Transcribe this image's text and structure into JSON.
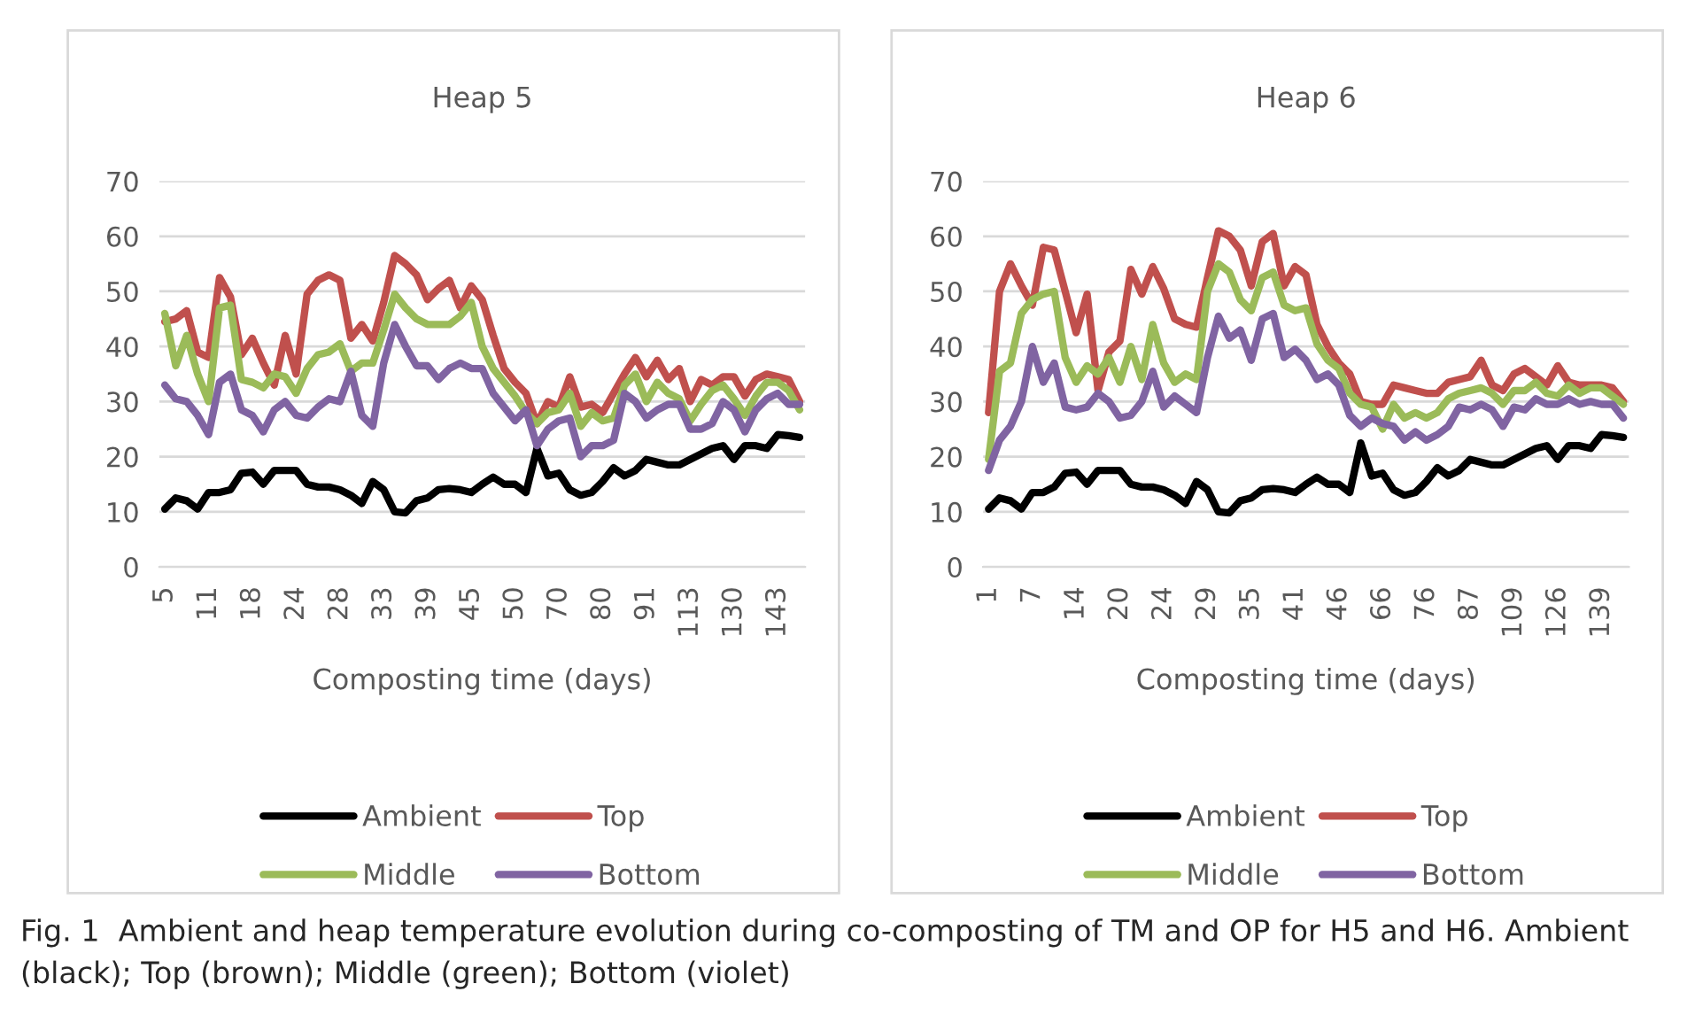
{
  "chart_data": [
    {
      "type": "line",
      "title": "Heap 5",
      "xlabel": "Composting time (days)",
      "categories": [
        "5",
        null,
        null,
        null,
        "11",
        null,
        null,
        null,
        "18",
        null,
        null,
        null,
        "24",
        null,
        null,
        null,
        "28",
        null,
        null,
        null,
        "33",
        null,
        null,
        null,
        "39",
        null,
        null,
        null,
        "45",
        null,
        null,
        null,
        "50",
        null,
        null,
        null,
        "70",
        null,
        null,
        null,
        "80",
        null,
        null,
        null,
        "91",
        null,
        null,
        null,
        "113",
        null,
        null,
        null,
        "130",
        null,
        null,
        null,
        "143",
        null,
        null
      ],
      "ylim": [
        0,
        70
      ],
      "yticks": [
        0,
        10,
        20,
        30,
        40,
        50,
        60,
        70
      ],
      "grid": "y",
      "legend": "bottom",
      "marker": "none",
      "line_style": "solid",
      "series": [
        {
          "name": "Ambient",
          "color": "#000000",
          "values": [
            10.5,
            12.5,
            12,
            10.5,
            13.5,
            13.5,
            14,
            17,
            17.2,
            15,
            17.5,
            17.5,
            17.5,
            15,
            14.5,
            14.5,
            14,
            13,
            11.5,
            15.5,
            14,
            10,
            9.8,
            12,
            12.5,
            14,
            14.2,
            14,
            13.5,
            15,
            16.3,
            15,
            15,
            13.5,
            21.5,
            16.5,
            17,
            14,
            13,
            13.5,
            15.5,
            18,
            16.5,
            17.5,
            19.5,
            19,
            18.5,
            18.5,
            19.5,
            20.5,
            21.5,
            22,
            19.5,
            22,
            22,
            21.5,
            24,
            23.8,
            23.5
          ]
        },
        {
          "name": "Top",
          "color": "#c0504d",
          "values": [
            44.5,
            45,
            46.5,
            39,
            38,
            52.5,
            49,
            38.5,
            41.5,
            37,
            33,
            42,
            35,
            49.5,
            52,
            53,
            52,
            41.5,
            44,
            41,
            48,
            56.5,
            55,
            53,
            48.5,
            50.5,
            52,
            47,
            51,
            48.5,
            42,
            36,
            33.5,
            31.5,
            26,
            30,
            29,
            34.5,
            29,
            29.5,
            28,
            31.5,
            35,
            38,
            34.5,
            37.5,
            34,
            36,
            30,
            34,
            33,
            34.5,
            34.5,
            31,
            34,
            35,
            34.5,
            34,
            30
          ]
        },
        {
          "name": "Middle",
          "color": "#9bbb59",
          "values": [
            46,
            36.5,
            42,
            35,
            30,
            47,
            47.5,
            34,
            33.5,
            32.5,
            35,
            34.5,
            31.5,
            36,
            38.5,
            39,
            40.5,
            35.5,
            37,
            37,
            43,
            49.5,
            47,
            45,
            44,
            44,
            44,
            45.5,
            48,
            40,
            36,
            33.5,
            31,
            28,
            26,
            28,
            28.5,
            31.5,
            25.5,
            28,
            26.5,
            27,
            33,
            35,
            30,
            33.5,
            31.5,
            30.5,
            26.5,
            29.5,
            32,
            33,
            30.5,
            27.5,
            31,
            33.5,
            33.5,
            32,
            28.5
          ]
        },
        {
          "name": "Bottom",
          "color": "#8064a2",
          "values": [
            33,
            30.5,
            30,
            27.5,
            24,
            33.5,
            35,
            28.5,
            27.5,
            24.5,
            28.5,
            30,
            27.5,
            27,
            29,
            30.5,
            30,
            35.5,
            27.5,
            25.5,
            37,
            44,
            40,
            36.5,
            36.5,
            34,
            36,
            37,
            36,
            36,
            31.5,
            29,
            26.5,
            28.5,
            22,
            25,
            26.5,
            27,
            20,
            22,
            22,
            23,
            31.5,
            30,
            27,
            28.5,
            29.5,
            29.5,
            25,
            25,
            26,
            30,
            28.5,
            24.5,
            28.5,
            30.5,
            31.5,
            29.5,
            29.5
          ]
        }
      ],
      "annotations": [
        "Fig. 1  Ambient and heap temperature evolution during co-composting of TM and OP for H5 and H6. Ambient (black); Top (brown); Middle (green); Bottom (violet)"
      ]
    },
    {
      "type": "line",
      "title": "Heap 6",
      "xlabel": "Composting time (days)",
      "categories": [
        "1",
        null,
        null,
        null,
        "7",
        null,
        null,
        null,
        "14",
        null,
        null,
        null,
        "20",
        null,
        null,
        null,
        "24",
        null,
        null,
        null,
        "29",
        null,
        null,
        null,
        "35",
        null,
        null,
        null,
        "41",
        null,
        null,
        null,
        "46",
        null,
        null,
        null,
        "66",
        null,
        null,
        null,
        "76",
        null,
        null,
        null,
        "87",
        null,
        null,
        null,
        "109",
        null,
        null,
        null,
        "126",
        null,
        null,
        null,
        "139",
        null,
        null
      ],
      "ylim": [
        0,
        70
      ],
      "yticks": [
        0,
        10,
        20,
        30,
        40,
        50,
        60,
        70
      ],
      "grid": "y",
      "legend": "bottom",
      "marker": "none",
      "line_style": "solid",
      "series": [
        {
          "name": "Ambient",
          "color": "#000000",
          "values": [
            10.5,
            12.5,
            12,
            10.5,
            13.5,
            13.5,
            14.5,
            17,
            17.2,
            15,
            17.5,
            17.5,
            17.5,
            15,
            14.5,
            14.5,
            14,
            13,
            11.5,
            15.5,
            14,
            10,
            9.8,
            12,
            12.5,
            14,
            14.2,
            14,
            13.5,
            15,
            16.3,
            15,
            15,
            13.5,
            22.5,
            16.5,
            17,
            14,
            13,
            13.5,
            15.5,
            18,
            16.5,
            17.5,
            19.5,
            19,
            18.5,
            18.5,
            19.5,
            20.5,
            21.5,
            22,
            19.5,
            22,
            22,
            21.5,
            24,
            23.8,
            23.5
          ]
        },
        {
          "name": "Top",
          "color": "#c0504d",
          "values": [
            28,
            50,
            55,
            51,
            47.5,
            58,
            57.5,
            50,
            42.5,
            49.5,
            32,
            39,
            41,
            54,
            49.5,
            54.5,
            50.5,
            45,
            44,
            43.5,
            52.5,
            61,
            60,
            57.5,
            51,
            59,
            60.5,
            51,
            54.5,
            53,
            44,
            40,
            37,
            35,
            30,
            29.5,
            29.5,
            33,
            32.5,
            32,
            31.5,
            31.5,
            33.5,
            34,
            34.5,
            37.5,
            33,
            32,
            35,
            36,
            34.5,
            33,
            36.5,
            33.5,
            33,
            33,
            33,
            32.5,
            30
          ]
        },
        {
          "name": "Middle",
          "color": "#9bbb59",
          "values": [
            19.5,
            35.5,
            37,
            46,
            48.5,
            49.5,
            50,
            38,
            33.5,
            36.5,
            35,
            38,
            33.5,
            40,
            34,
            44,
            37,
            33.5,
            35,
            34,
            50,
            55,
            53.5,
            48.5,
            46.5,
            52.5,
            53.5,
            47.5,
            46.5,
            47,
            40.5,
            37.5,
            36,
            31.5,
            29.5,
            29,
            25,
            29.5,
            27,
            28,
            27,
            28,
            30.5,
            31.5,
            32,
            32.5,
            31.5,
            29.5,
            32,
            32,
            33.5,
            31.5,
            31,
            33,
            31.5,
            32.5,
            32.5,
            31,
            29.5
          ]
        },
        {
          "name": "Bottom",
          "color": "#8064a2",
          "values": [
            17.5,
            23,
            25.5,
            30,
            40,
            33.5,
            37,
            29,
            28.5,
            29,
            31.5,
            30,
            27,
            27.5,
            30,
            35.5,
            29,
            31,
            29.5,
            28,
            38,
            45.5,
            41.5,
            43,
            37.5,
            45,
            46,
            38,
            39.5,
            37.5,
            34,
            35,
            33,
            27.5,
            25.5,
            27,
            26,
            25.5,
            23,
            24.5,
            23,
            24,
            25.5,
            29,
            28.5,
            29.5,
            28.5,
            25.5,
            29,
            28.5,
            30.5,
            29.5,
            29.5,
            30.5,
            29.5,
            30,
            29.5,
            29.5,
            27
          ]
        }
      ]
    }
  ]
}
